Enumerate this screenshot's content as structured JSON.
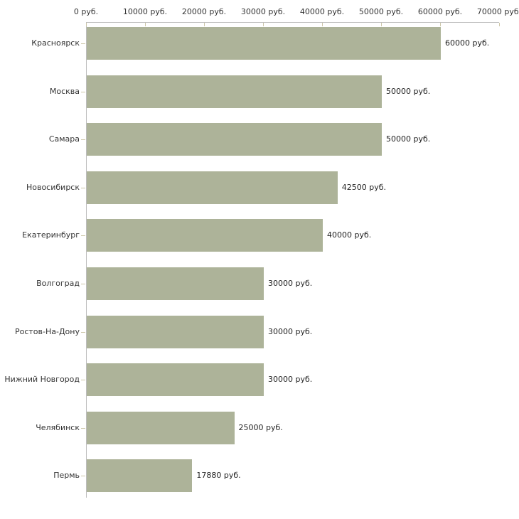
{
  "chart_data": {
    "type": "bar",
    "orientation": "horizontal",
    "title": "",
    "xlabel": "",
    "ylabel": "",
    "grid": false,
    "categories": [
      "Красноярск",
      "Москва",
      "Самара",
      "Новосибирск",
      "Екатеринбург",
      "Волгоград",
      "Ростов-На-Дону",
      "Нижний Новгород",
      "Челябинск",
      "Пермь"
    ],
    "values": [
      60000,
      50000,
      50000,
      42500,
      40000,
      30000,
      30000,
      30000,
      25000,
      17880
    ],
    "value_labels": [
      "60000 руб.",
      "50000 руб.",
      "50000 руб.",
      "42500 руб.",
      "40000 руб.",
      "30000 руб.",
      "30000 руб.",
      "30000 руб.",
      "25000 руб.",
      "17880 руб."
    ],
    "x_axis": {
      "position": "top",
      "range": [
        0,
        70000
      ],
      "ticks": [
        0,
        10000,
        20000,
        30000,
        40000,
        50000,
        60000,
        70000
      ],
      "tick_labels": [
        "0 руб.",
        "10000 руб.",
        "20000 руб.",
        "30000 руб.",
        "40000 руб.",
        "50000 руб.",
        "60000 руб.",
        "70000 руб."
      ]
    },
    "colors": {
      "bar": "#adb399",
      "axis_line": "#bdbdbd",
      "tick": "#ccc6a8",
      "text": "#333333",
      "background": "#ffffff"
    }
  }
}
